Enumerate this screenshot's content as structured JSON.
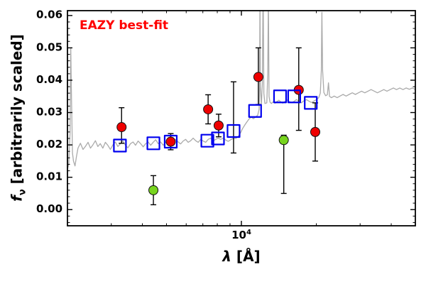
{
  "labels": {
    "annotation": "EAZY best-fit",
    "ylabel_symbol": "f",
    "ylabel_sub": "ν",
    "ylabel_rest": " [arbitrarily scaled]",
    "xlabel_symbol": "λ",
    "xlabel_rest": " [Å]",
    "xtick_base": "10",
    "xtick_exp": "4"
  },
  "chart_data": {
    "type": "line",
    "title": "EAZY best-fit",
    "xlabel": "λ [Å]",
    "ylabel": "f_ν [arbitrarily scaled]",
    "xscale": "log",
    "xlim": [
      2000,
      50000
    ],
    "ylim": [
      -0.005,
      0.0615
    ],
    "yticks": [
      0.0,
      0.01,
      0.02,
      0.03,
      0.04,
      0.05,
      0.06
    ],
    "xticks": [
      10000
    ],
    "xticks_minor": [
      3000,
      4000,
      5000,
      6000,
      7000,
      8000,
      9000,
      20000,
      30000,
      40000
    ],
    "grid": false,
    "legend": "none",
    "annotation_color": "#ff0000",
    "series": [
      {
        "name": "model-spectrum",
        "type": "line",
        "color": "#aaaaaa",
        "points": [
          [
            2000,
            0.0125
          ],
          [
            2025,
            0.014
          ],
          [
            2048,
            0.0235
          ],
          [
            2062,
            0.05
          ],
          [
            2078,
            0.033
          ],
          [
            2095,
            0.0175
          ],
          [
            2115,
            0.015
          ],
          [
            2145,
            0.0135
          ],
          [
            2175,
            0.0165
          ],
          [
            2205,
            0.019
          ],
          [
            2255,
            0.0205
          ],
          [
            2310,
            0.0186
          ],
          [
            2365,
            0.0196
          ],
          [
            2420,
            0.0208
          ],
          [
            2475,
            0.019
          ],
          [
            2530,
            0.02
          ],
          [
            2590,
            0.0213
          ],
          [
            2650,
            0.0195
          ],
          [
            2710,
            0.0204
          ],
          [
            2775,
            0.019
          ],
          [
            2840,
            0.0208
          ],
          [
            2905,
            0.0199
          ],
          [
            2975,
            0.0186
          ],
          [
            3045,
            0.02
          ],
          [
            3115,
            0.0209
          ],
          [
            3190,
            0.0195
          ],
          [
            3265,
            0.0204
          ],
          [
            3340,
            0.0212
          ],
          [
            3420,
            0.0199
          ],
          [
            3500,
            0.0191
          ],
          [
            3585,
            0.0204
          ],
          [
            3670,
            0.0209
          ],
          [
            3755,
            0.0199
          ],
          [
            3845,
            0.0212
          ],
          [
            3935,
            0.0204
          ],
          [
            4030,
            0.0194
          ],
          [
            4125,
            0.0204
          ],
          [
            4220,
            0.0209
          ],
          [
            4320,
            0.0199
          ],
          [
            4420,
            0.0208
          ],
          [
            4525,
            0.0216
          ],
          [
            4630,
            0.0204
          ],
          [
            4740,
            0.0209
          ],
          [
            4850,
            0.0199
          ],
          [
            4965,
            0.0208
          ],
          [
            5080,
            0.0213
          ],
          [
            5200,
            0.0204
          ],
          [
            5320,
            0.0209
          ],
          [
            5445,
            0.0217
          ],
          [
            5570,
            0.0209
          ],
          [
            5700,
            0.0203
          ],
          [
            5835,
            0.0212
          ],
          [
            5970,
            0.0217
          ],
          [
            6110,
            0.0208
          ],
          [
            6255,
            0.0213
          ],
          [
            6400,
            0.0221
          ],
          [
            6550,
            0.0213
          ],
          [
            6705,
            0.0208
          ],
          [
            6860,
            0.0217
          ],
          [
            7020,
            0.0212
          ],
          [
            7185,
            0.0208
          ],
          [
            7355,
            0.0217
          ],
          [
            7525,
            0.0221
          ],
          [
            7700,
            0.0212
          ],
          [
            7880,
            0.0217
          ],
          [
            8065,
            0.0221
          ],
          [
            8255,
            0.0217
          ],
          [
            8450,
            0.0221
          ],
          [
            8650,
            0.0215
          ],
          [
            8850,
            0.0211
          ],
          [
            9060,
            0.0216
          ],
          [
            9270,
            0.022
          ],
          [
            9490,
            0.022
          ],
          [
            9700,
            0.0226
          ],
          [
            9900,
            0.0236
          ],
          [
            10100,
            0.025
          ],
          [
            10310,
            0.0261
          ],
          [
            10520,
            0.0271
          ],
          [
            10730,
            0.028
          ],
          [
            10950,
            0.0286
          ],
          [
            11170,
            0.0281
          ],
          [
            11400,
            0.0286
          ],
          [
            11630,
            0.0292
          ],
          [
            11780,
            0.031
          ],
          [
            11840,
            0.038
          ],
          [
            11875,
            0.068
          ],
          [
            11915,
            0.038
          ],
          [
            12030,
            0.0325
          ],
          [
            12140,
            0.039
          ],
          [
            12225,
            0.07
          ],
          [
            12310,
            0.036
          ],
          [
            12430,
            0.0328
          ],
          [
            12650,
            0.033
          ],
          [
            12760,
            0.042
          ],
          [
            12835,
            0.066
          ],
          [
            12915,
            0.035
          ],
          [
            13030,
            0.0332
          ],
          [
            13200,
            0.0328
          ],
          [
            13400,
            0.0333
          ],
          [
            13650,
            0.0329
          ],
          [
            13900,
            0.0334
          ],
          [
            14150,
            0.0338
          ],
          [
            14400,
            0.0333
          ],
          [
            14650,
            0.0329
          ],
          [
            14950,
            0.0334
          ],
          [
            15250,
            0.0339
          ],
          [
            15600,
            0.0334
          ],
          [
            15950,
            0.033
          ],
          [
            16300,
            0.0335
          ],
          [
            16650,
            0.034
          ],
          [
            17000,
            0.0335
          ],
          [
            17400,
            0.033
          ],
          [
            17800,
            0.0336
          ],
          [
            18250,
            0.034
          ],
          [
            18700,
            0.0335
          ],
          [
            19150,
            0.0331
          ],
          [
            19600,
            0.0336
          ],
          [
            20050,
            0.034
          ],
          [
            20450,
            0.0346
          ],
          [
            20750,
            0.036
          ],
          [
            20950,
            0.043
          ],
          [
            21060,
            0.061
          ],
          [
            21200,
            0.043
          ],
          [
            21450,
            0.0362
          ],
          [
            21800,
            0.0352
          ],
          [
            22150,
            0.0355
          ],
          [
            22380,
            0.0392
          ],
          [
            22600,
            0.035
          ],
          [
            23000,
            0.0346
          ],
          [
            23600,
            0.0351
          ],
          [
            24250,
            0.0346
          ],
          [
            24900,
            0.0351
          ],
          [
            25600,
            0.0356
          ],
          [
            26350,
            0.0351
          ],
          [
            27100,
            0.0356
          ],
          [
            27900,
            0.0361
          ],
          [
            28700,
            0.0356
          ],
          [
            29550,
            0.0361
          ],
          [
            30400,
            0.0366
          ],
          [
            31300,
            0.0361
          ],
          [
            32250,
            0.0366
          ],
          [
            33200,
            0.0371
          ],
          [
            34200,
            0.0366
          ],
          [
            35200,
            0.0361
          ],
          [
            36250,
            0.0366
          ],
          [
            37350,
            0.0371
          ],
          [
            38450,
            0.0366
          ],
          [
            39600,
            0.0371
          ],
          [
            40800,
            0.0376
          ],
          [
            42000,
            0.0371
          ],
          [
            43300,
            0.0376
          ],
          [
            44600,
            0.0371
          ],
          [
            45900,
            0.0376
          ],
          [
            47300,
            0.0372
          ],
          [
            48650,
            0.0376
          ],
          [
            50000,
            0.0371
          ]
        ]
      },
      {
        "name": "observed-photometry",
        "type": "scatter",
        "marker": "circle",
        "color": "#ee0000",
        "edge_color": "#111111",
        "size": 13,
        "errorbars": true,
        "points": [
          {
            "x": 3300,
            "y": 0.0255,
            "lo": 0.005,
            "hi": 0.006
          },
          {
            "x": 5200,
            "y": 0.021,
            "lo": 0.0025,
            "hi": 0.0025
          },
          {
            "x": 7350,
            "y": 0.031,
            "lo": 0.0045,
            "hi": 0.0045
          },
          {
            "x": 8100,
            "y": 0.026,
            "lo": 0.0035,
            "hi": 0.0035
          },
          {
            "x": 9300,
            "y": 0.028,
            "lo": 0.0105,
            "hi": 0.0115,
            "marker_hidden": true
          },
          {
            "x": 11700,
            "y": 0.041,
            "lo": 0.0085,
            "hi": 0.009
          },
          {
            "x": 17000,
            "y": 0.037,
            "lo": 0.0125,
            "hi": 0.013
          },
          {
            "x": 19800,
            "y": 0.024,
            "lo": 0.009,
            "hi": 0.009
          }
        ]
      },
      {
        "name": "flagged-photometry",
        "type": "scatter",
        "marker": "circle",
        "color": "#77d41e",
        "edge_color": "#111111",
        "size": 13,
        "errorbars": true,
        "points": [
          {
            "x": 4430,
            "y": 0.006,
            "lo": 0.0045,
            "hi": 0.0045
          },
          {
            "x": 14800,
            "y": 0.0215,
            "lo": 0.0165,
            "hi": 0.0015
          }
        ]
      },
      {
        "name": "model-photometry",
        "type": "scatter",
        "marker": "square-open",
        "color": "#0000ee",
        "size": 17,
        "errorbars": false,
        "points": [
          {
            "x": 3250,
            "y": 0.0198
          },
          {
            "x": 4430,
            "y": 0.0205
          },
          {
            "x": 5200,
            "y": 0.021
          },
          {
            "x": 7300,
            "y": 0.0213
          },
          {
            "x": 8050,
            "y": 0.022
          },
          {
            "x": 9300,
            "y": 0.0243
          },
          {
            "x": 11350,
            "y": 0.0305
          },
          {
            "x": 14300,
            "y": 0.035
          },
          {
            "x": 16300,
            "y": 0.035
          },
          {
            "x": 19000,
            "y": 0.033
          }
        ]
      }
    ]
  }
}
